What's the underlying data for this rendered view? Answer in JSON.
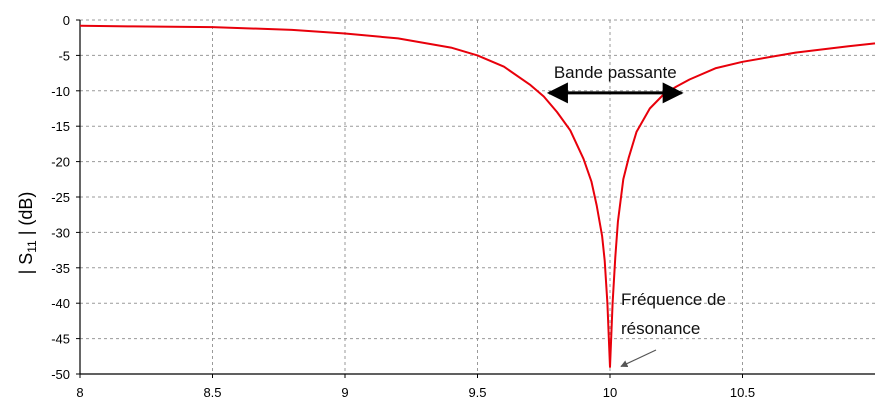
{
  "chart_data": {
    "type": "line",
    "title": "",
    "xlabel": "",
    "ylabel": {
      "prefix": "| S",
      "subscript": "11",
      "suffix": " | (dB)"
    },
    "xlim": [
      8,
      11
    ],
    "ylim": [
      -50,
      0
    ],
    "x_ticks": [
      8,
      8.5,
      9,
      9.5,
      10,
      10.5
    ],
    "y_ticks": [
      0,
      -5,
      -10,
      -15,
      -20,
      -25,
      -30,
      -35,
      -40,
      -45,
      -50
    ],
    "grid": true,
    "grid_style": "dashed",
    "colors": {
      "curve": "#e8000b",
      "grid": "#9a9a9a",
      "axis": "#000000"
    },
    "series": [
      {
        "x": [
          8,
          8.2,
          8.5,
          8.8,
          9,
          9.2,
          9.4,
          9.5,
          9.6,
          9.7,
          9.75,
          9.8,
          9.85,
          9.9,
          9.93,
          9.95,
          9.97,
          9.98,
          9.99,
          10,
          10.01,
          10.02,
          10.03,
          10.05,
          10.07,
          10.1,
          10.15,
          10.2,
          10.25,
          10.3,
          10.4,
          10.5,
          10.7,
          10.9,
          11
        ],
        "y": [
          -0.8,
          -0.9,
          -1.0,
          -1.4,
          -1.9,
          -2.6,
          -3.9,
          -5.0,
          -6.6,
          -9.2,
          -10.8,
          -13.0,
          -15.6,
          -19.6,
          -22.8,
          -26.2,
          -30.5,
          -34.0,
          -40.0,
          -49.0,
          -40.0,
          -33.5,
          -28.5,
          -22.5,
          -19.5,
          -15.8,
          -12.5,
          -10.6,
          -9.4,
          -8.4,
          -6.8,
          -5.9,
          -4.6,
          -3.7,
          -3.3
        ]
      }
    ],
    "annotations": {
      "bandwidth": {
        "label": "Bande passante",
        "x_start": 9.77,
        "x_end": 10.27,
        "y": -10.3
      },
      "resonance": {
        "line1": "Fréquence de",
        "line2": "résonance",
        "arrow_tip_x": 10.03,
        "arrow_tip_y": -49.5
      }
    }
  }
}
